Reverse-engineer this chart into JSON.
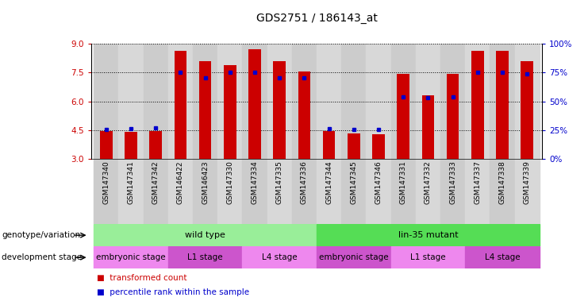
{
  "title": "GDS2751 / 186143_at",
  "samples": [
    "GSM147340",
    "GSM147341",
    "GSM147342",
    "GSM146422",
    "GSM146423",
    "GSM147330",
    "GSM147334",
    "GSM147335",
    "GSM147336",
    "GSM147344",
    "GSM147345",
    "GSM147346",
    "GSM147331",
    "GSM147332",
    "GSM147333",
    "GSM147337",
    "GSM147338",
    "GSM147339"
  ],
  "bar_heights": [
    4.45,
    4.4,
    4.45,
    8.65,
    8.1,
    7.9,
    8.7,
    8.1,
    7.55,
    4.45,
    4.35,
    4.3,
    7.45,
    6.3,
    7.45,
    8.65,
    8.65,
    8.1
  ],
  "blue_dot_y": [
    4.52,
    4.57,
    4.62,
    7.52,
    7.22,
    7.52,
    7.52,
    7.22,
    7.22,
    4.57,
    4.52,
    4.52,
    6.25,
    6.2,
    6.25,
    7.52,
    7.52,
    7.45
  ],
  "ylim_left": [
    3,
    9
  ],
  "ylim_right": [
    0,
    100
  ],
  "yticks_left": [
    3,
    4.5,
    6,
    7.5,
    9
  ],
  "yticks_right": [
    0,
    25,
    50,
    75,
    100
  ],
  "bar_color": "#cc0000",
  "dot_color": "#0000cc",
  "bar_bottom": 3.0,
  "genotype_groups": [
    {
      "label": "wild type",
      "start": 0,
      "end": 9,
      "color": "#99ee99"
    },
    {
      "label": "lin-35 mutant",
      "start": 9,
      "end": 18,
      "color": "#55dd55"
    }
  ],
  "stage_groups": [
    {
      "label": "embryonic stage",
      "start": 0,
      "end": 3,
      "color": "#ee88ee"
    },
    {
      "label": "L1 stage",
      "start": 3,
      "end": 6,
      "color": "#cc55cc"
    },
    {
      "label": "L4 stage",
      "start": 6,
      "end": 9,
      "color": "#ee88ee"
    },
    {
      "label": "embryonic stage",
      "start": 9,
      "end": 12,
      "color": "#cc55cc"
    },
    {
      "label": "L1 stage",
      "start": 12,
      "end": 15,
      "color": "#ee88ee"
    },
    {
      "label": "L4 stage",
      "start": 15,
      "end": 18,
      "color": "#cc55cc"
    }
  ],
  "background_color": "#ffffff",
  "grid_color": "#000000",
  "tick_label_color_left": "#cc0000",
  "tick_label_color_right": "#0000cc",
  "title_fontsize": 10,
  "tick_fontsize": 7.5,
  "col_colors": [
    "#cccccc",
    "#d8d8d8"
  ]
}
